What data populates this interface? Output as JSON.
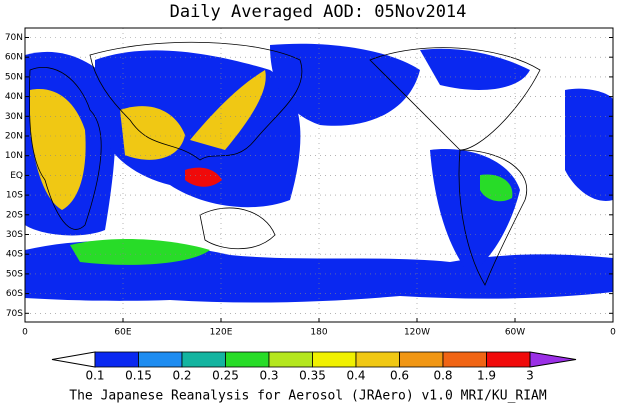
{
  "title": "Daily Averaged AOD: 05Nov2014",
  "lat_labels": [
    "70N",
    "60N",
    "50N",
    "40N",
    "30N",
    "20N",
    "10N",
    "EQ",
    "10S",
    "20S",
    "30S",
    "40S",
    "50S",
    "60S",
    "70S"
  ],
  "lon_labels": [
    "0",
    "60E",
    "120E",
    "180",
    "120W",
    "60W",
    "0"
  ],
  "colorbar": {
    "levels": [
      0.1,
      0.15,
      0.2,
      0.25,
      0.3,
      0.35,
      0.4,
      0.6,
      0.8,
      1.9,
      3
    ],
    "colors": [
      "#ffffff",
      "#0a28f0",
      "#1e8cf0",
      "#14b4a0",
      "#28dc28",
      "#b4e61e",
      "#f0f000",
      "#f0c814",
      "#f09614",
      "#f06414",
      "#f00a0a",
      "#9b30e6"
    ]
  },
  "footer": "The Japanese Reanalysis for Aerosol (JRAero) v1.0 MRI/KU_RIAM"
}
